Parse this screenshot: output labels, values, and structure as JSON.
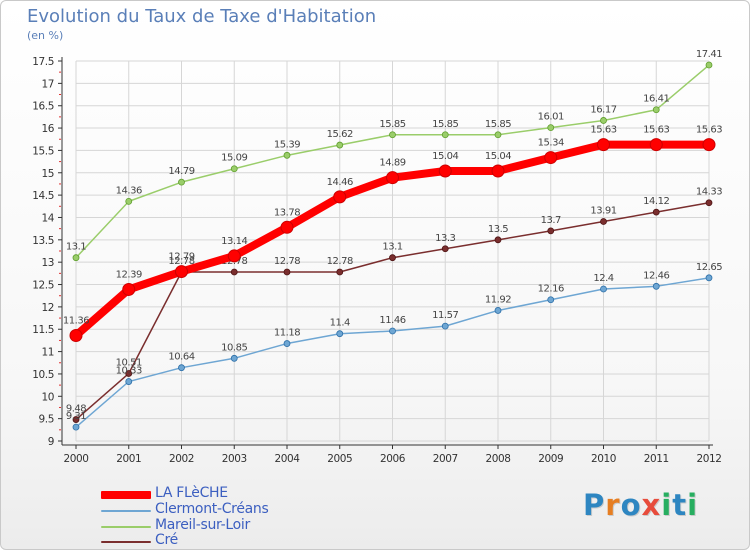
{
  "title": "Evolution du Taux de Taxe d'Habitation",
  "subtitle": "(en %)",
  "logo": {
    "text": "Proxiti",
    "colors": [
      "#2e86c1",
      "#e67e22",
      "#2e86c1",
      "#e74c3c",
      "#27ae60",
      "#2e86c1",
      "#27ae60"
    ]
  },
  "chart_data": {
    "type": "line",
    "title": "Evolution du Taux de Taxe d'Habitation",
    "subtitle": "(en %)",
    "x": [
      "2000",
      "2001",
      "2002",
      "2003",
      "2004",
      "2005",
      "2006",
      "2007",
      "2008",
      "2009",
      "2010",
      "2011",
      "2012"
    ],
    "ylim": [
      9,
      17.5
    ],
    "yticks": [
      "9",
      "9.5",
      "10",
      "10.5",
      "11",
      "11.5",
      "12",
      "12.5",
      "13",
      "13.5",
      "14",
      "14.5",
      "15",
      "15.5",
      "16",
      "16.5",
      "17",
      "17.5"
    ],
    "grid": true,
    "legend_position": "bottom-left",
    "series": [
      {
        "name": "LA FLèCHE",
        "color": "#ff0000",
        "values": [
          11.36,
          12.39,
          12.79,
          13.14,
          13.78,
          14.46,
          14.89,
          15.04,
          15.04,
          15.34,
          15.63,
          15.63,
          15.63
        ],
        "labels": [
          "11.36",
          "12.39",
          "12.79",
          "13.14",
          "13.78",
          "14.46",
          "14.89",
          "15.04",
          "15.04",
          "15.34",
          "15.63",
          "15.63",
          "15.63"
        ]
      },
      {
        "name": "Clermont-Créans",
        "color": "#6ea6d3",
        "values": [
          9.31,
          10.33,
          10.64,
          10.85,
          11.18,
          11.4,
          11.46,
          11.57,
          11.92,
          12.16,
          12.4,
          12.46,
          12.65
        ],
        "labels": [
          "9.31",
          "10.33",
          "10.64",
          "10.85",
          "11.18",
          "11.4",
          "11.46",
          "11.57",
          "11.92",
          "12.16",
          "12.4",
          "12.46",
          "12.65"
        ]
      },
      {
        "name": "Mareil-sur-Loir",
        "color": "#9acd6a",
        "values": [
          13.1,
          14.36,
          14.79,
          15.09,
          15.39,
          15.62,
          15.85,
          15.85,
          15.85,
          16.01,
          16.17,
          16.41,
          17.41
        ],
        "labels": [
          "13.1",
          "14.36",
          "14.79",
          "15.09",
          "15.39",
          "15.62",
          "15.85",
          "15.85",
          "15.85",
          "16.01",
          "16.17",
          "16.41",
          "17.41"
        ]
      },
      {
        "name": "Cré",
        "color": "#7a2e2e",
        "values": [
          9.48,
          10.51,
          12.78,
          12.78,
          12.78,
          12.78,
          13.1,
          13.3,
          13.5,
          13.7,
          13.91,
          14.12,
          14.33
        ],
        "labels": [
          "9.48",
          "10.51",
          "12.78",
          "12.78",
          "12.78",
          "12.78",
          "13.1",
          "13.3",
          "13.5",
          "13.7",
          "13.91",
          "14.12",
          "14.33"
        ]
      }
    ]
  }
}
